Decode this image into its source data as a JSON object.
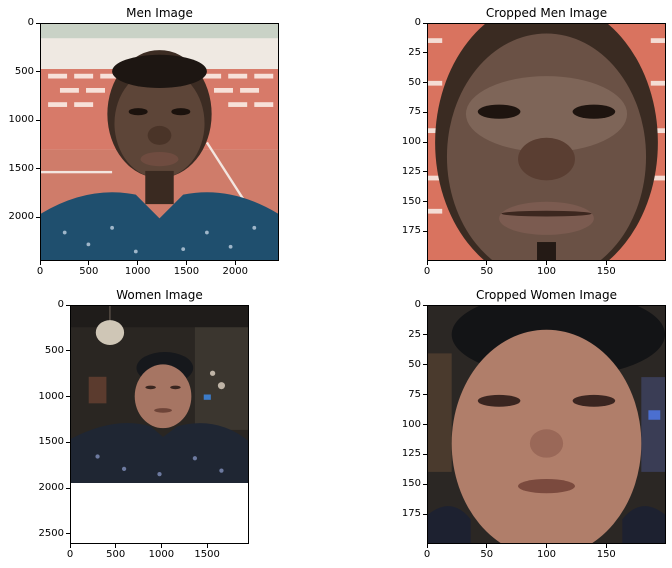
{
  "chart_data": [
    {
      "type": "image",
      "title": "Men Image",
      "xlim": [
        0,
        2448
      ],
      "ylim": [
        2448,
        0
      ],
      "xticks": [
        0,
        500,
        1000,
        1500,
        2000
      ],
      "yticks": [
        0,
        500,
        1000,
        1500,
        2000
      ],
      "content": "photo-man-full"
    },
    {
      "type": "image",
      "title": "Cropped Men Image",
      "xlim": [
        0,
        200
      ],
      "ylim": [
        200,
        0
      ],
      "xticks": [
        0,
        50,
        100,
        150
      ],
      "yticks": [
        0,
        25,
        50,
        75,
        100,
        125,
        150,
        175
      ],
      "content": "photo-man-cropped"
    },
    {
      "type": "image",
      "title": "Women Image",
      "xlim": [
        0,
        1958
      ],
      "ylim": [
        2611,
        0
      ],
      "xticks": [
        0,
        500,
        1000,
        1500
      ],
      "yticks": [
        0,
        500,
        1000,
        1500,
        2000,
        2500
      ],
      "content": "photo-woman-full"
    },
    {
      "type": "image",
      "title": "Cropped Women Image",
      "xlim": [
        0,
        200
      ],
      "ylim": [
        200,
        0
      ],
      "xticks": [
        0,
        50,
        100,
        150
      ],
      "yticks": [
        0,
        25,
        50,
        75,
        100,
        125,
        150,
        175
      ],
      "content": "photo-woman-cropped"
    }
  ]
}
